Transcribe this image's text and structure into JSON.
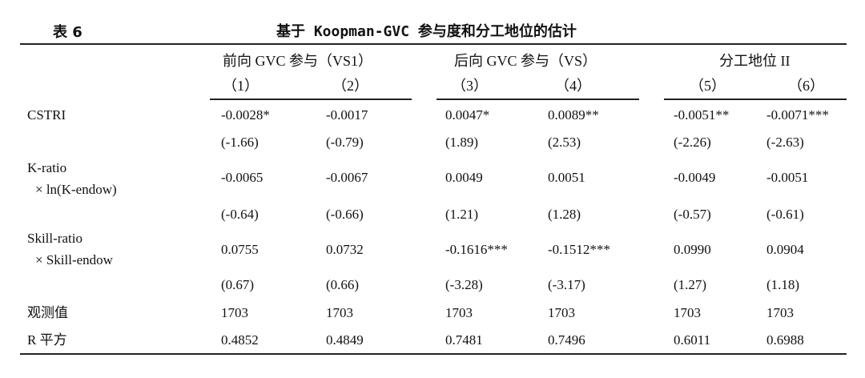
{
  "table": {
    "label": "表 6",
    "title": "基于 Koopman-GVC 参与度和分工地位的估计",
    "groups": [
      "前向 GVC 参与（VS1）",
      "后向 GVC 参与（VS）",
      "分工地位 II"
    ],
    "columns": [
      "（1）",
      "（2）",
      "（3）",
      "（4）",
      "（5）",
      "（6）"
    ],
    "rows": [
      {
        "label": "CSTRI",
        "label2": "",
        "coef": [
          "-0.0028*",
          "-0.0017",
          "0.0047*",
          "0.0089**",
          "-0.0051**",
          "-0.0071***"
        ],
        "t": [
          "(-1.66)",
          "(-0.79)",
          "(1.89)",
          "(2.53)",
          "(-2.26)",
          "(-2.63)"
        ]
      },
      {
        "label": "K-ratio",
        "label2": "× ln(K-endow)",
        "coef": [
          "-0.0065",
          "-0.0067",
          "0.0049",
          "0.0051",
          "-0.0049",
          "-0.0051"
        ],
        "t": [
          "(-0.64)",
          "(-0.66)",
          "(1.21)",
          "(1.28)",
          "(-0.57)",
          "(-0.61)"
        ]
      },
      {
        "label": "Skill-ratio",
        "label2": "× Skill-endow",
        "coef": [
          "0.0755",
          "0.0732",
          "-0.1616***",
          "-0.1512***",
          "0.0990",
          "0.0904"
        ],
        "t": [
          "(0.67)",
          "(0.66)",
          "(-3.28)",
          "(-3.17)",
          "(1.27)",
          "(1.18)"
        ]
      }
    ],
    "obs": {
      "label": "观测值",
      "values": [
        "1703",
        "1703",
        "1703",
        "1703",
        "1703",
        "1703"
      ]
    },
    "r2": {
      "label": "R 平方",
      "values": [
        "0.4852",
        "0.4849",
        "0.7481",
        "0.7496",
        "0.6011",
        "0.6988"
      ]
    }
  }
}
